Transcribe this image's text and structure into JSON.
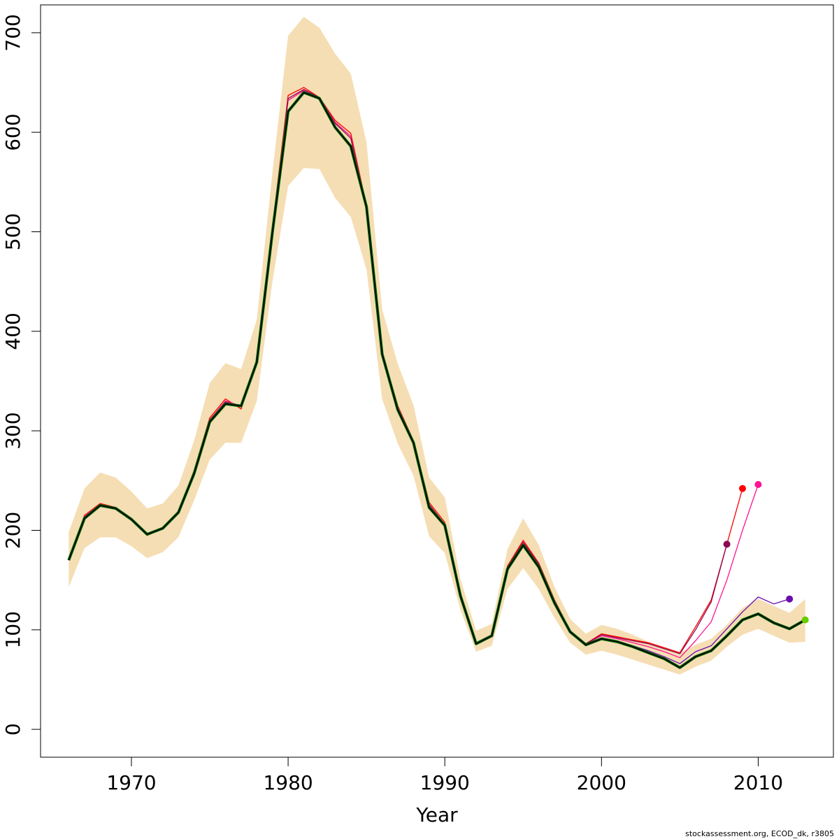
{
  "chart_data": {
    "type": "line",
    "title": "",
    "xlabel": "Year",
    "ylabel": "",
    "xlim": [
      1964.2,
      2014.8
    ],
    "ylim": [
      -28,
      728
    ],
    "xticks": [
      1970,
      1980,
      1990,
      2000,
      2010
    ],
    "yticks": [
      0,
      100,
      200,
      300,
      400,
      500,
      600,
      700
    ],
    "grid": false,
    "legend": "none",
    "band": {
      "color": "#f5deb3",
      "x": [
        1966,
        1967,
        1968,
        1969,
        1970,
        1971,
        1972,
        1973,
        1974,
        1975,
        1976,
        1977,
        1978,
        1979,
        1980,
        1981,
        1982,
        1983,
        1984,
        1985,
        1986,
        1987,
        1988,
        1989,
        1990,
        1991,
        1992,
        1993,
        1994,
        1995,
        1996,
        1997,
        1998,
        1999,
        2000,
        2001,
        2002,
        2003,
        2004,
        2005,
        2006,
        2007,
        2008,
        2009,
        2010,
        2011,
        2012,
        2013
      ],
      "upper": [
        198,
        242,
        258,
        253,
        239,
        222,
        227,
        245,
        290,
        348,
        368,
        362,
        412,
        560,
        697,
        716,
        705,
        679,
        659,
        590,
        422,
        367,
        326,
        253,
        233,
        151,
        99,
        106,
        181,
        212,
        185,
        143,
        111,
        96,
        105,
        101,
        95,
        88,
        82,
        77,
        85,
        91,
        105,
        122,
        131,
        124,
        117,
        131
      ],
      "lower": [
        143,
        182,
        193,
        193,
        184,
        172,
        178,
        193,
        230,
        271,
        288,
        288,
        330,
        450,
        546,
        564,
        563,
        534,
        515,
        462,
        332,
        287,
        255,
        194,
        177,
        120,
        78,
        84,
        141,
        162,
        141,
        112,
        87,
        75,
        79,
        75,
        70,
        65,
        60,
        55,
        63,
        69,
        83,
        95,
        101,
        94,
        87,
        88
      ]
    },
    "series": [
      {
        "color": "#ff0000",
        "x": [
          1966,
          1967,
          1968,
          1969,
          1970,
          1971,
          1972,
          1973,
          1974,
          1975,
          1976,
          1977,
          1978,
          1979,
          1980,
          1981,
          1982,
          1983,
          1984,
          1985,
          1986,
          1987,
          1988,
          1989,
          1990,
          1991,
          1992,
          1993,
          1994,
          1995,
          1996,
          1997,
          1998,
          1999,
          2000,
          2001,
          2002,
          2003,
          2004,
          2005,
          2006,
          2007,
          2008,
          2009
        ],
        "values": [
          170,
          215,
          227,
          223,
          212,
          195,
          202,
          219,
          260,
          313,
          332,
          322,
          372,
          505,
          637,
          645,
          635,
          612,
          599,
          526,
          379,
          325,
          290,
          228,
          208,
          137,
          87,
          95,
          164,
          190,
          167,
          130,
          99,
          86,
          96,
          93,
          90,
          87,
          82,
          77,
          103,
          130,
          186,
          242
        ],
        "end_marker": true
      },
      {
        "color": "#ff1493",
        "x": [
          1966,
          1967,
          1968,
          1969,
          1970,
          1971,
          1972,
          1973,
          1974,
          1975,
          1976,
          1977,
          1978,
          1979,
          1980,
          1981,
          1982,
          1983,
          1984,
          1985,
          1986,
          1987,
          1988,
          1989,
          1990,
          1991,
          1992,
          1993,
          1994,
          1995,
          1996,
          1997,
          1998,
          1999,
          2000,
          2001,
          2002,
          2003,
          2004,
          2005,
          2006,
          2007,
          2008,
          2009,
          2010
        ],
        "values": [
          170,
          214,
          226,
          222,
          211,
          195,
          202,
          218,
          259,
          311,
          330,
          325,
          370,
          502,
          632,
          642,
          635,
          610,
          596,
          525,
          378,
          324,
          289,
          226,
          206,
          136,
          87,
          95,
          163,
          188,
          166,
          129,
          98,
          86,
          94,
          91,
          87,
          83,
          78,
          72,
          89,
          108,
          150,
          200,
          246
        ],
        "end_marker": true
      },
      {
        "color": "#8b0a50",
        "x": [
          1966,
          1967,
          1968,
          1969,
          1970,
          1971,
          1972,
          1973,
          1974,
          1975,
          1976,
          1977,
          1978,
          1979,
          1980,
          1981,
          1982,
          1983,
          1984,
          1985,
          1986,
          1987,
          1988,
          1989,
          1990,
          1991,
          1992,
          1993,
          1994,
          1995,
          1996,
          1997,
          1998,
          1999,
          2000,
          2001,
          2002,
          2003,
          2004,
          2005,
          2006,
          2007,
          2008
        ],
        "values": [
          170,
          213,
          226,
          222,
          211,
          196,
          202,
          218,
          259,
          311,
          329,
          325,
          370,
          503,
          634,
          643,
          635,
          609,
          594,
          525,
          378,
          323,
          289,
          226,
          206,
          135,
          87,
          94,
          163,
          188,
          166,
          129,
          98,
          86,
          95,
          92,
          89,
          86,
          81,
          76,
          100,
          128,
          186
        ],
        "end_marker": true
      },
      {
        "color": "#6a0dad",
        "x": [
          1966,
          1967,
          1968,
          1969,
          1970,
          1971,
          1972,
          1973,
          1974,
          1975,
          1976,
          1977,
          1978,
          1979,
          1980,
          1981,
          1982,
          1983,
          1984,
          1985,
          1986,
          1987,
          1988,
          1989,
          1990,
          1991,
          1992,
          1993,
          1994,
          1995,
          1996,
          1997,
          1998,
          1999,
          2000,
          2001,
          2002,
          2003,
          2004,
          2005,
          2006,
          2007,
          2008,
          2009,
          2010,
          2011,
          2012
        ],
        "values": [
          170,
          213,
          226,
          222,
          211,
          196,
          202,
          218,
          258,
          310,
          328,
          325,
          370,
          502,
          622,
          640,
          634,
          606,
          587,
          525,
          377,
          322,
          289,
          224,
          205,
          134,
          86,
          94,
          162,
          186,
          164,
          128,
          98,
          85,
          92,
          89,
          84,
          79,
          73,
          66,
          78,
          84,
          101,
          118,
          133,
          126,
          131
        ],
        "end_marker": true
      },
      {
        "color": "#006400",
        "x": [
          1966,
          1967,
          1968,
          1969,
          1970,
          1971,
          1972,
          1973,
          1974,
          1975,
          1976,
          1977,
          1978,
          1979,
          1980,
          1981,
          1982,
          1983,
          1984,
          1985,
          1986,
          1987,
          1988,
          1989,
          1990,
          1991,
          1992,
          1993,
          1994,
          1995,
          1996,
          1997,
          1998,
          1999,
          2000,
          2001,
          2002,
          2003,
          2004,
          2005,
          2006,
          2007,
          2008,
          2009,
          2010,
          2011,
          2012,
          2013
        ],
        "values": [
          170,
          212,
          225,
          222,
          211,
          196,
          202,
          218,
          257,
          309,
          327,
          325,
          369,
          500,
          621,
          640,
          634,
          605,
          586,
          525,
          377,
          321,
          288,
          223,
          205,
          134,
          86,
          94,
          161,
          185,
          163,
          127,
          98,
          85,
          91,
          88,
          83,
          77,
          71,
          62,
          73,
          79,
          94,
          110,
          116,
          107,
          101,
          110
        ],
        "end_marker": false
      },
      {
        "color": "#000000",
        "x": [
          1966,
          1967,
          1968,
          1969,
          1970,
          1971,
          1972,
          1973,
          1974,
          1975,
          1976,
          1977,
          1978,
          1979,
          1980,
          1981,
          1982,
          1983,
          1984,
          1985,
          1986,
          1987,
          1988,
          1989,
          1990,
          1991,
          1992,
          1993,
          1994,
          1995,
          1996,
          1997,
          1998,
          1999,
          2000,
          2001,
          2002,
          2003,
          2004,
          2005,
          2006,
          2007,
          2008,
          2009,
          2010,
          2011,
          2012,
          2013
        ],
        "values": [
          170,
          212,
          225,
          222,
          211,
          196,
          202,
          218,
          257,
          309,
          327,
          325,
          369,
          500,
          621,
          640,
          634,
          605,
          586,
          525,
          377,
          321,
          288,
          223,
          205,
          134,
          86,
          94,
          161,
          185,
          163,
          127,
          98,
          85,
          91,
          88,
          83,
          77,
          71,
          62,
          73,
          79,
          94,
          110,
          116,
          107,
          101,
          110
        ],
        "end_marker": false
      }
    ],
    "markers": [
      {
        "x": 2013,
        "y": 110,
        "color": "#66cc00"
      }
    ],
    "caption": "stockassessment.org, ECOD_dk, r3805"
  }
}
